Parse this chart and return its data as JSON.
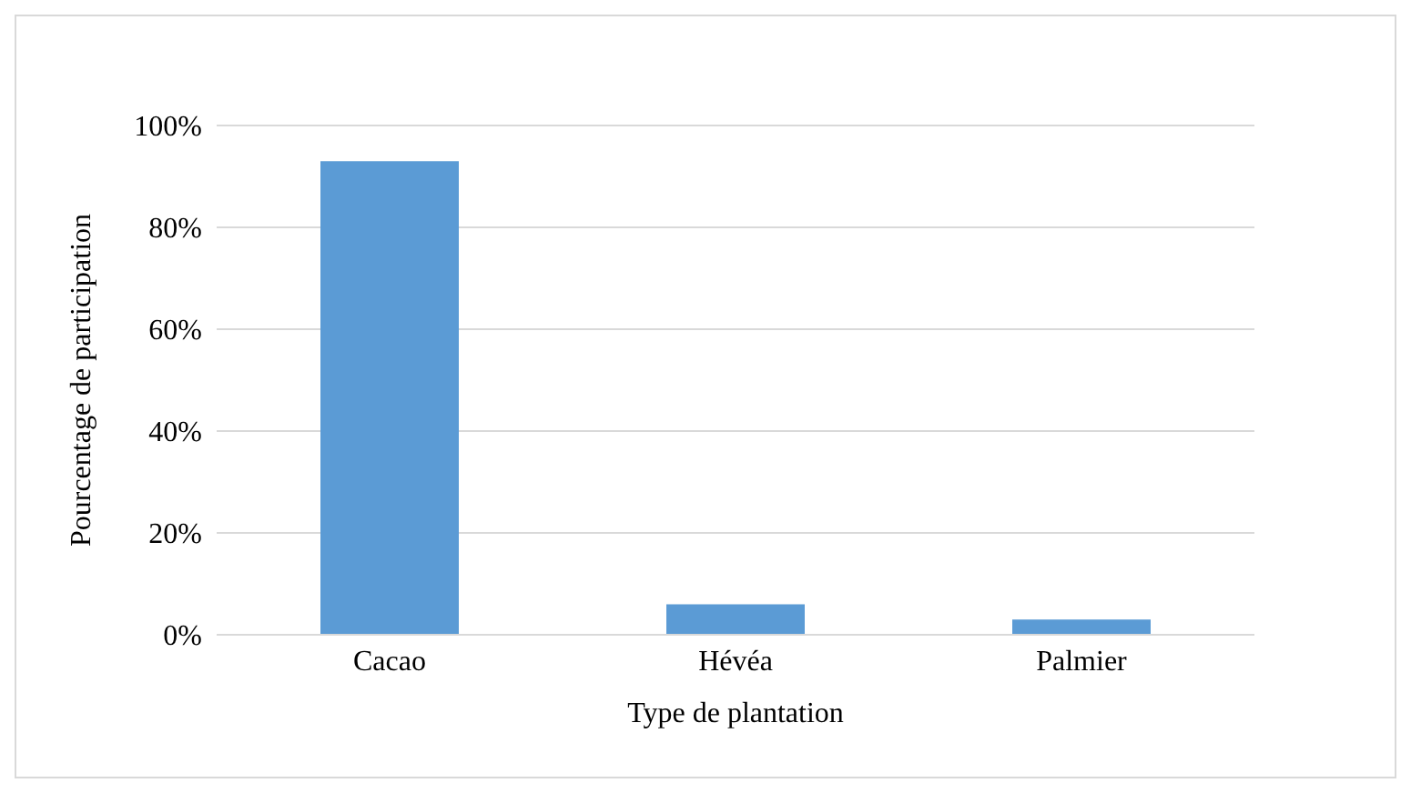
{
  "chart_data": {
    "type": "bar",
    "xlabel": "Type de plantation",
    "ylabel": "Pourcentage de participation",
    "categories": [
      "Cacao",
      "Hévéa",
      "Palmier"
    ],
    "values": [
      93,
      6,
      3
    ],
    "color": "#5b9bd5",
    "ylim": [
      0,
      100
    ],
    "yticks": [
      {
        "value": 0,
        "label": "0%"
      },
      {
        "value": 20,
        "label": "20%"
      },
      {
        "value": 40,
        "label": "40%"
      },
      {
        "value": 60,
        "label": "60%"
      },
      {
        "value": 80,
        "label": "80%"
      },
      {
        "value": 100,
        "label": "100%"
      }
    ],
    "grid": "y"
  }
}
